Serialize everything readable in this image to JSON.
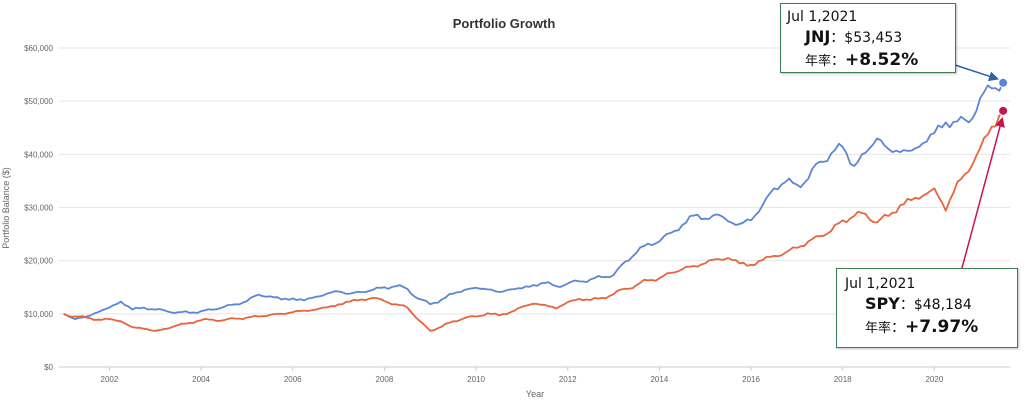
{
  "chart_data": {
    "type": "line",
    "title": "Portfolio Growth",
    "xlabel": "Year",
    "ylabel": "Portfolio Balance ($)",
    "xlim": [
      2000.9,
      2021.65
    ],
    "ylim": [
      0,
      60000
    ],
    "x_ticks": [
      2002,
      2004,
      2006,
      2008,
      2010,
      2012,
      2014,
      2016,
      2018,
      2020
    ],
    "y_ticks": [
      0,
      10000,
      20000,
      30000,
      40000,
      50000,
      60000
    ],
    "y_tick_labels": [
      "$0",
      "$10,000",
      "$20,000",
      "$30,000",
      "$40,000",
      "$50,000",
      "$60,000"
    ],
    "grid": true,
    "series": [
      {
        "name": "JNJ",
        "color": "#5b86d6",
        "points": [
          [
            2001.0,
            10000
          ],
          [
            2001.25,
            9000
          ],
          [
            2001.5,
            9500
          ],
          [
            2001.75,
            10300
          ],
          [
            2002.0,
            11200
          ],
          [
            2002.25,
            12300
          ],
          [
            2002.5,
            10800
          ],
          [
            2002.75,
            11200
          ],
          [
            2003.0,
            10800
          ],
          [
            2003.25,
            10500
          ],
          [
            2003.5,
            10300
          ],
          [
            2003.75,
            10200
          ],
          [
            2004.0,
            10500
          ],
          [
            2004.25,
            10800
          ],
          [
            2004.5,
            11300
          ],
          [
            2004.75,
            11800
          ],
          [
            2005.0,
            12400
          ],
          [
            2005.25,
            13600
          ],
          [
            2005.5,
            13300
          ],
          [
            2005.75,
            12700
          ],
          [
            2006.0,
            12900
          ],
          [
            2006.25,
            12500
          ],
          [
            2006.5,
            13200
          ],
          [
            2006.75,
            13800
          ],
          [
            2007.0,
            14200
          ],
          [
            2007.25,
            13800
          ],
          [
            2007.5,
            14100
          ],
          [
            2007.75,
            14500
          ],
          [
            2008.0,
            15000
          ],
          [
            2008.25,
            15200
          ],
          [
            2008.5,
            14700
          ],
          [
            2008.75,
            12800
          ],
          [
            2009.0,
            11800
          ],
          [
            2009.25,
            12700
          ],
          [
            2009.5,
            13800
          ],
          [
            2009.75,
            14500
          ],
          [
            2010.0,
            14900
          ],
          [
            2010.25,
            14600
          ],
          [
            2010.5,
            14100
          ],
          [
            2010.75,
            14600
          ],
          [
            2011.0,
            14800
          ],
          [
            2011.25,
            15400
          ],
          [
            2011.5,
            15800
          ],
          [
            2011.75,
            15200
          ],
          [
            2012.0,
            15700
          ],
          [
            2012.25,
            16100
          ],
          [
            2012.5,
            16500
          ],
          [
            2012.75,
            16900
          ],
          [
            2013.0,
            17300
          ],
          [
            2013.25,
            19800
          ],
          [
            2013.5,
            21500
          ],
          [
            2013.75,
            23200
          ],
          [
            2014.0,
            23600
          ],
          [
            2014.25,
            25200
          ],
          [
            2014.5,
            26700
          ],
          [
            2014.75,
            28500
          ],
          [
            2015.0,
            27900
          ],
          [
            2015.25,
            28700
          ],
          [
            2015.5,
            27400
          ],
          [
            2015.75,
            26900
          ],
          [
            2016.0,
            27600
          ],
          [
            2016.25,
            30400
          ],
          [
            2016.5,
            33600
          ],
          [
            2016.75,
            34800
          ],
          [
            2017.0,
            34300
          ],
          [
            2017.25,
            35400
          ],
          [
            2017.5,
            38600
          ],
          [
            2017.75,
            40200
          ],
          [
            2018.0,
            41400
          ],
          [
            2018.25,
            37800
          ],
          [
            2018.5,
            40300
          ],
          [
            2018.75,
            43000
          ],
          [
            2019.0,
            41000
          ],
          [
            2019.25,
            40400
          ],
          [
            2019.5,
            40700
          ],
          [
            2019.75,
            42100
          ],
          [
            2020.0,
            44000
          ],
          [
            2020.25,
            46000
          ],
          [
            2020.5,
            46200
          ],
          [
            2020.75,
            46000
          ],
          [
            2021.0,
            50600
          ],
          [
            2021.25,
            52400
          ],
          [
            2021.5,
            53453
          ]
        ]
      },
      {
        "name": "SPY",
        "color": "#e8643c",
        "points": [
          [
            2001.0,
            10000
          ],
          [
            2001.25,
            9500
          ],
          [
            2001.5,
            9300
          ],
          [
            2001.75,
            8900
          ],
          [
            2002.0,
            9000
          ],
          [
            2002.25,
            8600
          ],
          [
            2002.5,
            7500
          ],
          [
            2002.75,
            7200
          ],
          [
            2003.0,
            6800
          ],
          [
            2003.25,
            7200
          ],
          [
            2003.5,
            7900
          ],
          [
            2003.75,
            8300
          ],
          [
            2004.0,
            8800
          ],
          [
            2004.25,
            8900
          ],
          [
            2004.5,
            8800
          ],
          [
            2004.75,
            9100
          ],
          [
            2005.0,
            9300
          ],
          [
            2005.25,
            9500
          ],
          [
            2005.5,
            9800
          ],
          [
            2005.75,
            10000
          ],
          [
            2006.0,
            10300
          ],
          [
            2006.25,
            10600
          ],
          [
            2006.5,
            10800
          ],
          [
            2006.75,
            11200
          ],
          [
            2007.0,
            11800
          ],
          [
            2007.25,
            12300
          ],
          [
            2007.5,
            12700
          ],
          [
            2007.75,
            13000
          ],
          [
            2008.0,
            12400
          ],
          [
            2008.25,
            11800
          ],
          [
            2008.5,
            11200
          ],
          [
            2008.75,
            8800
          ],
          [
            2009.0,
            6800
          ],
          [
            2009.25,
            7600
          ],
          [
            2009.5,
            8600
          ],
          [
            2009.75,
            9200
          ],
          [
            2010.0,
            9500
          ],
          [
            2010.25,
            10100
          ],
          [
            2010.5,
            9700
          ],
          [
            2010.75,
            10300
          ],
          [
            2011.0,
            11300
          ],
          [
            2011.25,
            11900
          ],
          [
            2011.5,
            11700
          ],
          [
            2011.75,
            11000
          ],
          [
            2012.0,
            12200
          ],
          [
            2012.25,
            12800
          ],
          [
            2012.5,
            12600
          ],
          [
            2012.75,
            13000
          ],
          [
            2013.0,
            13700
          ],
          [
            2013.25,
            14700
          ],
          [
            2013.5,
            15400
          ],
          [
            2013.75,
            16300
          ],
          [
            2014.0,
            16700
          ],
          [
            2014.25,
            17700
          ],
          [
            2014.5,
            18400
          ],
          [
            2014.75,
            19000
          ],
          [
            2015.0,
            19500
          ],
          [
            2015.25,
            20300
          ],
          [
            2015.5,
            20500
          ],
          [
            2015.75,
            19500
          ],
          [
            2016.0,
            19200
          ],
          [
            2016.25,
            20100
          ],
          [
            2016.5,
            20900
          ],
          [
            2016.75,
            21500
          ],
          [
            2017.0,
            22400
          ],
          [
            2017.25,
            23600
          ],
          [
            2017.5,
            24600
          ],
          [
            2017.75,
            25600
          ],
          [
            2018.0,
            27600
          ],
          [
            2018.25,
            28400
          ],
          [
            2018.5,
            28800
          ],
          [
            2018.75,
            27200
          ],
          [
            2019.0,
            28400
          ],
          [
            2019.25,
            30400
          ],
          [
            2019.5,
            31400
          ],
          [
            2019.75,
            32200
          ],
          [
            2020.0,
            33600
          ],
          [
            2020.25,
            29400
          ],
          [
            2020.5,
            34800
          ],
          [
            2020.75,
            36800
          ],
          [
            2021.0,
            41200
          ],
          [
            2021.25,
            45200
          ],
          [
            2021.5,
            48184
          ]
        ]
      }
    ],
    "annotations": [
      {
        "series": "JNJ",
        "date": "Jul 1,2021",
        "ticker": "JNJ",
        "value_text": "$53,453",
        "rate_label": "年率",
        "rate_text": "+8.52%",
        "arrow_color": "#2f5fa8",
        "marker_color": "#5b86d6"
      },
      {
        "series": "SPY",
        "date": "Jul 1,2021",
        "ticker": "SPY",
        "value_text": "$48,184",
        "rate_label": "年率",
        "rate_text": "+7.97%",
        "arrow_color": "#c8144c",
        "marker_color": "#c8144c"
      }
    ]
  }
}
